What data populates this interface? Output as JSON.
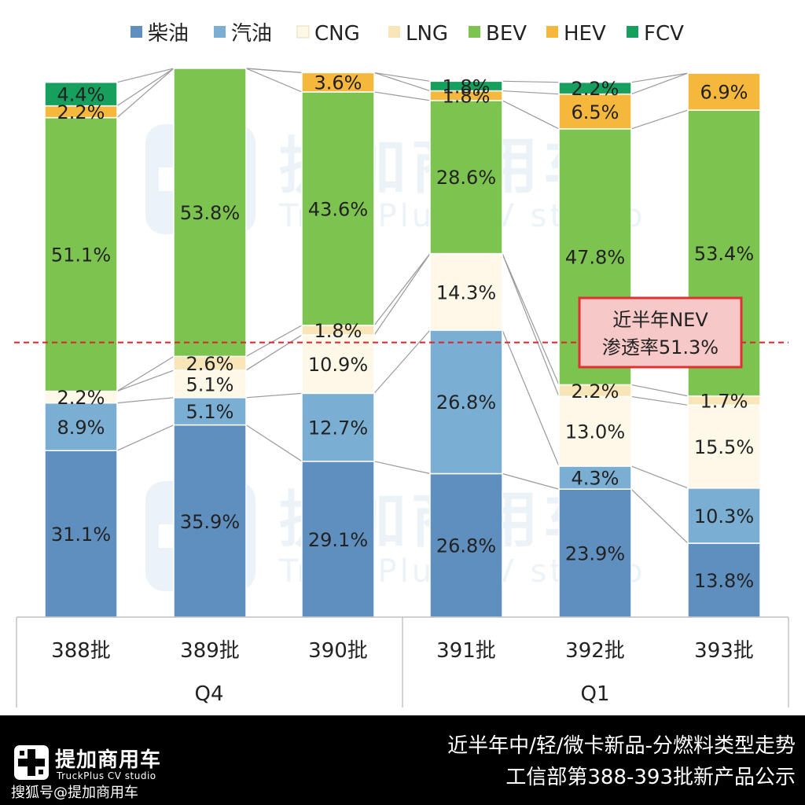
{
  "chart_data": {
    "type": "bar",
    "stacked": "percent",
    "legend_position": "top",
    "categories": [
      "388批",
      "389批",
      "390批",
      "391批",
      "392批",
      "393批"
    ],
    "groups": [
      {
        "label": "Q4",
        "categories": [
          "388批",
          "389批",
          "390批"
        ]
      },
      {
        "label": "Q1",
        "categories": [
          "391批",
          "392批",
          "393批"
        ]
      }
    ],
    "series": [
      {
        "name": "柴油",
        "color": "#5f8fbf",
        "values": [
          31.1,
          35.9,
          29.1,
          26.8,
          23.9,
          13.8
        ],
        "labels": [
          "31.1%",
          "35.9%",
          "29.1%",
          "26.8%",
          "23.9%",
          "13.8%"
        ]
      },
      {
        "name": "汽油",
        "color": "#7aaed3",
        "values": [
          8.9,
          5.1,
          12.7,
          26.8,
          4.3,
          10.3
        ],
        "labels": [
          "8.9%",
          "5.1%",
          "12.7%",
          "26.8%",
          "4.3%",
          "10.3%"
        ]
      },
      {
        "name": "CNG",
        "color": "#fdf8e8",
        "values": [
          2.2,
          5.1,
          10.9,
          14.3,
          13.0,
          15.5
        ],
        "labels": [
          "2.2%",
          "5.1%",
          "10.9%",
          "14.3%",
          "13.0%",
          "15.5%"
        ]
      },
      {
        "name": "LNG",
        "color": "#f9e6b8",
        "values": [
          0,
          2.6,
          1.8,
          0,
          2.2,
          1.7
        ],
        "labels": [
          "",
          "2.6%",
          "1.8%",
          "",
          "2.2%",
          "1.7%"
        ]
      },
      {
        "name": "BEV",
        "color": "#7dc350",
        "values": [
          51.1,
          53.8,
          43.6,
          28.6,
          47.8,
          53.4
        ],
        "labels": [
          "51.1%",
          "53.8%",
          "43.6%",
          "28.6%",
          "47.8%",
          "53.4%"
        ]
      },
      {
        "name": "HEV",
        "color": "#f5b73c",
        "values": [
          2.2,
          0,
          3.6,
          1.8,
          6.5,
          6.9
        ],
        "labels": [
          "2.2%",
          "",
          "3.6%",
          "1.8%",
          "6.5%",
          "6.9%"
        ]
      },
      {
        "name": "FCV",
        "color": "#17a05d",
        "values": [
          4.4,
          0,
          0,
          1.8,
          2.2,
          0
        ],
        "labels": [
          "4.4%",
          "",
          "",
          "1.8%",
          "2.2%",
          ""
        ]
      }
    ],
    "reference_line": {
      "value": 51.3,
      "color": "#d9262a",
      "style": "dashed"
    },
    "annotation": {
      "line1": "近半年NEV",
      "line2": "渗透率51.3%",
      "background": "#f7c8c8",
      "border": "#e0302f"
    },
    "ylim": [
      0,
      100
    ],
    "title": "",
    "xlabel": "",
    "ylabel": ""
  },
  "watermark": {
    "name": "提加商用车",
    "sub": "TruckPlus CV studio"
  },
  "footer": {
    "logo_name": "提加商用车",
    "logo_sub": "TruckPlus CV studio",
    "source_note": "搜狐号@提加商用车",
    "caption_line1": "近半年中/轻/微卡新品-分燃料类型走势",
    "caption_line2": "工信部第388-393批新产品公示"
  }
}
